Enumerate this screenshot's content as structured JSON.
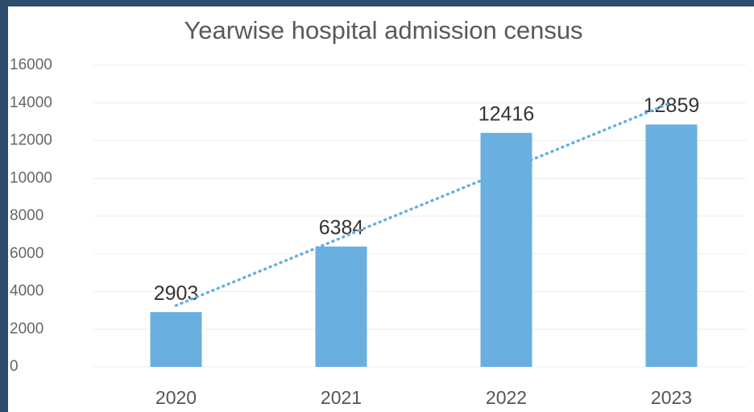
{
  "chart_data": {
    "type": "bar",
    "title": "Yearwise hospital admission census",
    "categories": [
      "2020",
      "2021",
      "2022",
      "2023"
    ],
    "values": [
      2903,
      6384,
      12416,
      12859
    ],
    "color": "#69afdf",
    "ylim": [
      0,
      16000
    ],
    "yticks": [
      0,
      2000,
      4000,
      6000,
      8000,
      10000,
      12000,
      14000,
      16000
    ],
    "grid": true,
    "trendline": "linear"
  }
}
